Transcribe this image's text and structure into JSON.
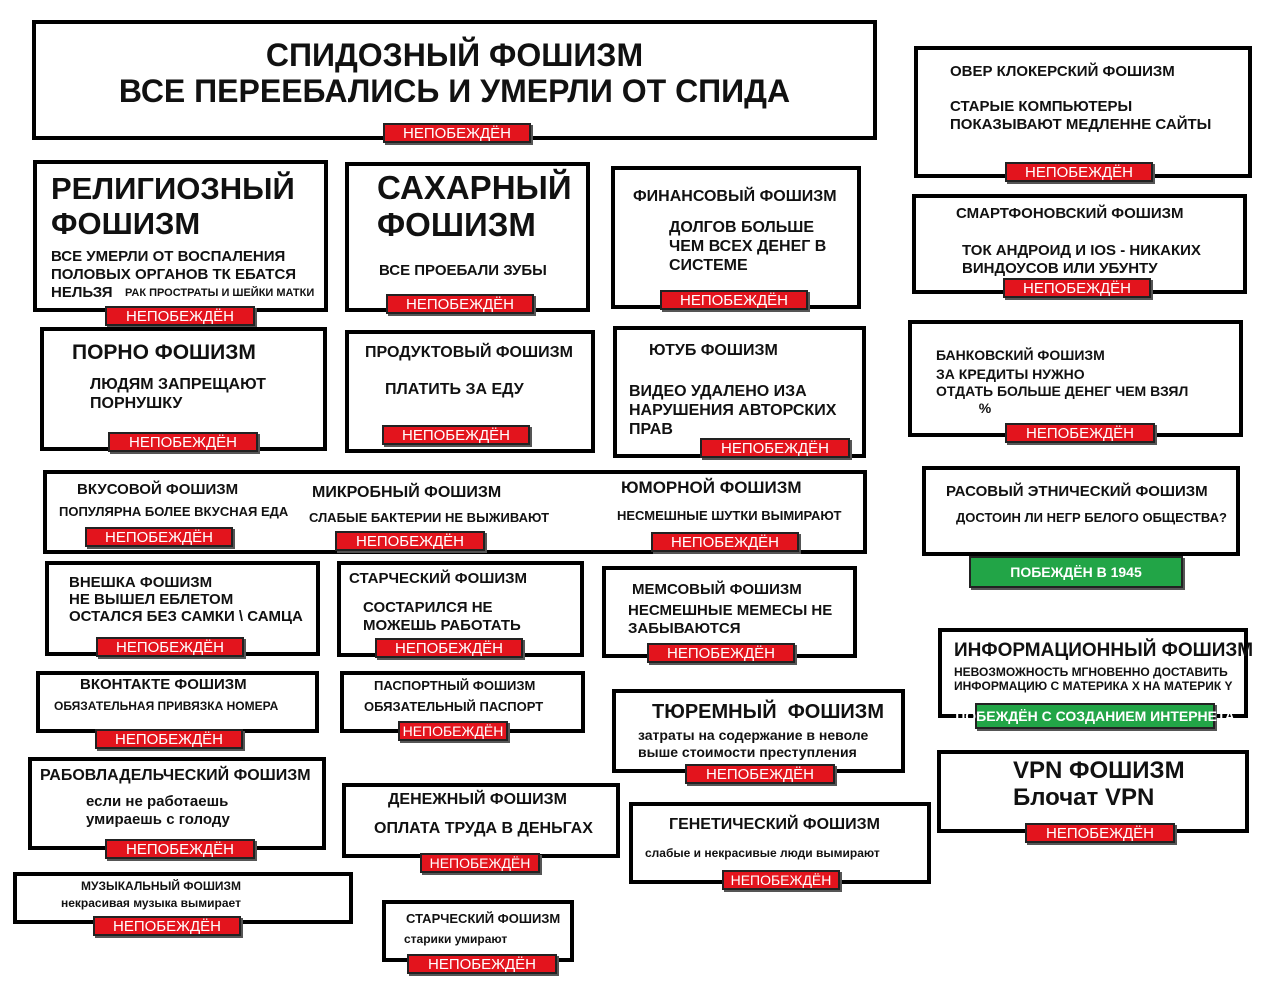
{
  "colors": {
    "undefeated": "#e3141d",
    "defeated": "#22a547",
    "border": "#000000"
  },
  "boxes": [
    {
      "title": "СПИДОЗНЫЙ ФОШИЗМ\nВСЕ ПЕРЕЕБАЛИСЬ И УМЕРЛИ ОТ СПИДА",
      "body": "",
      "badge": "НЕПОБЕЖДЁН",
      "status": "undefeated"
    },
    {
      "title": "РЕЛИГИОЗНЫЙ\nФОШИЗМ",
      "body": "ВСЕ УМЕРЛИ ОТ ВОСПАЛЕНИЯ\nПОЛОВЫХ ОРГАНОВ ТК ЕБАТСЯ\nНЕЛЬЗЯ",
      "note": "РАК ПРОСТРАТЫ И ШЕЙКИ МАТКИ",
      "badge": "НЕПОБЕЖДЁН",
      "status": "undefeated"
    },
    {
      "title": "САХАРНЫЙ\nФОШИЗМ",
      "body": "ВСЕ ПРОЕБАЛИ ЗУБЫ",
      "badge": "НЕПОБЕЖДЁН",
      "status": "undefeated"
    },
    {
      "title": "ФИНАНСОВЫЙ ФОШИЗМ",
      "body": "ДОЛГОВ БОЛЬШЕ\nЧЕМ ВСЕХ ДЕНЕГ В\nСИСТЕМЕ",
      "badge": "НЕПОБЕЖДЁН",
      "status": "undefeated"
    },
    {
      "title": "ОВЕР КЛОКЕРСКИЙ ФОШИЗМ",
      "body": "СТАРЫЕ КОМПЬЮТЕРЫ\nПОКАЗЫВАЮТ МЕДЛЕННЕ САЙТЫ",
      "badge": "НЕПОБЕЖДЁН",
      "status": "undefeated"
    },
    {
      "title": "СМАРТФОНОВСКИЙ ФОШИЗМ",
      "body": "ТОК АНДРОИД И IOS - НИКАКИХ\nВИНДОУСОВ ИЛИ УБУНТУ",
      "badge": "НЕПОБЕЖДЁН",
      "status": "undefeated"
    },
    {
      "title": "ПОРНО ФОШИЗМ",
      "body": "ЛЮДЯМ ЗАПРЕЩАЮТ\nПОРНУШКУ",
      "badge": "НЕПОБЕЖДЁН",
      "status": "undefeated"
    },
    {
      "title": "ПРОДУКТОВЫЙ ФОШИЗМ",
      "body": "ПЛАТИТЬ ЗА ЕДУ",
      "badge": "НЕПОБЕЖДЁН",
      "status": "undefeated"
    },
    {
      "title": "ЮТУБ ФОШИЗМ",
      "body": "ВИДЕО УДАЛЕНО ИЗА\nНАРУШЕНИЯ АВТОРСКИХ\nПРАВ",
      "badge": "НЕПОБЕЖДЁН",
      "status": "undefeated"
    },
    {
      "title": "БАНКОВСКИЙ ФОШИЗМ",
      "body": "ЗА КРЕДИТЫ НУЖНО\nОТДАТЬ БОЛЬШЕ ДЕНЕГ ЧЕМ ВЗЯЛ\n           %",
      "badge": "НЕПОБЕЖДЁН",
      "status": "undefeated"
    },
    {
      "title": "ВКУСОВОЙ ФОШИЗМ",
      "body": "ПОПУЛЯРНА БОЛЕЕ ВКУСНАЯ ЕДА",
      "badge": "НЕПОБЕЖДЁН",
      "status": "undefeated"
    },
    {
      "title": "МИКРОБНЫЙ ФОШИЗМ",
      "body": "СЛАБЫЕ БАКТЕРИИ НЕ ВЫЖИВАЮТ",
      "badge": "НЕПОБЕЖДЁН",
      "status": "undefeated"
    },
    {
      "title": "ЮМОРНОЙ ФОШИЗМ",
      "body": "НЕСМЕШНЫЕ ШУТКИ ВЫМИРАЮТ",
      "badge": "НЕПОБЕЖДЁН",
      "status": "undefeated"
    },
    {
      "title": "РАСОВЫЙ ЭТНИЧЕСКИЙ ФОШИЗМ",
      "body": "ДОСТОИН ЛИ НЕГР БЕЛОГО ОБЩЕСТВА?",
      "badge": "ПОБЕЖДЁН В 1945",
      "status": "defeated"
    },
    {
      "title": "ВНЕШКА ФОШИЗМ\nНЕ ВЫШЕЛ ЕБЛЕТОМ\nОСТАЛСЯ БЕЗ САМКИ \\ САМЦА",
      "body": "",
      "badge": "НЕПОБЕЖДЁН",
      "status": "undefeated"
    },
    {
      "title": "СТАРЧЕСКИЙ ФОШИЗМ",
      "body": "СОСТАРИЛСЯ НЕ\nМОЖЕШЬ РАБОТАТЬ",
      "badge": "НЕПОБЕЖДЁН",
      "status": "undefeated"
    },
    {
      "title": "МЕМСОВЫЙ ФОШИЗМ",
      "body": "НЕСМЕШНЫЕ МЕМЕСЫ НЕ\nЗАБЫВАЮТСЯ",
      "badge": "НЕПОБЕЖДЁН",
      "status": "undefeated"
    },
    {
      "title": "ИНФОРМАЦИОННЫЙ ФОШИЗМ",
      "body": "НЕВОЗМОЖНОСТЬ МГНОВЕННО ДОСТАВИТЬ\nИНФОРМАЦИЮ С МАТЕРИКА Х НА МАТЕРИК Y",
      "badge": "ПОБЕЖДЁН С СОЗДАНИЕМ ИНТЕРНЕТА",
      "status": "defeated"
    },
    {
      "title": "ВКОНТАКТЕ ФОШИЗМ",
      "body": "ОБЯЗАТЕЛЬНАЯ ПРИВЯЗКА НОМЕРА",
      "badge": "НЕПОБЕЖДЁН",
      "status": "undefeated"
    },
    {
      "title": "ПАСПОРТНЫЙ ФОШИЗМ",
      "body": "ОБЯЗАТЕЛЬНЫЙ ПАСПОРТ",
      "badge": "НЕПОБЕЖДЁН",
      "status": "undefeated"
    },
    {
      "title": "ТЮРЕМНЫЙ  ФОШИЗМ",
      "body": "затраты на содержание в неволе\nвыше стоимости преступления",
      "badge": "НЕПОБЕЖДЁН",
      "status": "undefeated"
    },
    {
      "title": "VPN ФОШИЗМ\nБлочат VPN",
      "body": "",
      "badge": "НЕПОБЕЖДЁН",
      "status": "undefeated"
    },
    {
      "title": "РАБОВЛАДЕЛЬЧЕСКИЙ ФОШИЗМ",
      "body": "если не работаешь\nумираешь с голоду",
      "badge": "НЕПОБЕЖДЁН",
      "status": "undefeated"
    },
    {
      "title": "ДЕНЕЖНЫЙ ФОШИЗМ",
      "body": "ОПЛАТА ТРУДА В ДЕНЬГАХ",
      "badge": "НЕПОБЕЖДЁН",
      "status": "undefeated"
    },
    {
      "title": "ГЕНЕТИЧЕСКИЙ ФОШИЗМ",
      "body": "слабые и некрасивые люди вымирают",
      "badge": "НЕПОБЕЖДЁН",
      "status": "undefeated"
    },
    {
      "title": "МУЗЫКАЛЬНЫЙ ФОШИЗМ",
      "body": "некрасивая музыка вымирает",
      "badge": "НЕПОБЕЖДЁН",
      "status": "undefeated"
    },
    {
      "title": "СТАРЧЕСКИЙ ФОШИЗМ",
      "body": "старики умирают",
      "badge": "НЕПОБЕЖДЁН",
      "status": "undefeated"
    }
  ]
}
